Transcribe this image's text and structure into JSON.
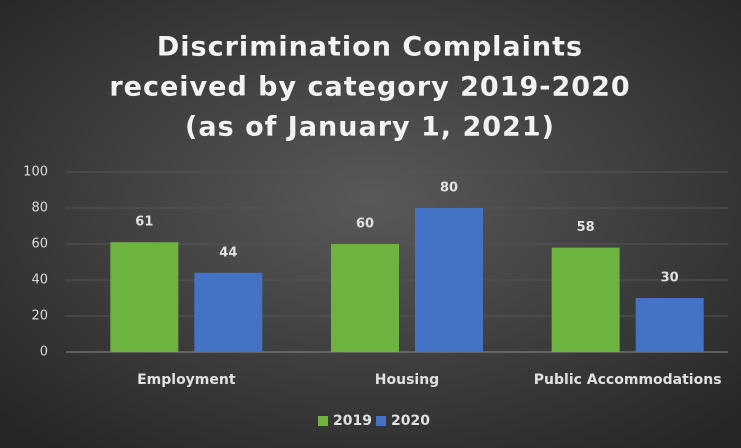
{
  "chart_data": {
    "type": "bar",
    "title": [
      "Discrimination Complaints",
      "received by category 2019-2020",
      "(as of January 1, 2021)"
    ],
    "categories": [
      "Employment",
      "Housing",
      "Public Accommodations"
    ],
    "series": [
      {
        "name": "2019",
        "color": "#6db33f",
        "values": [
          61,
          60,
          58
        ]
      },
      {
        "name": "2020",
        "color": "#4472c4",
        "values": [
          44,
          80,
          30
        ]
      }
    ],
    "ylim": [
      0,
      100
    ],
    "yticks": [
      0,
      20,
      40,
      60,
      80,
      100
    ],
    "grid": true,
    "legend": "bottom"
  }
}
